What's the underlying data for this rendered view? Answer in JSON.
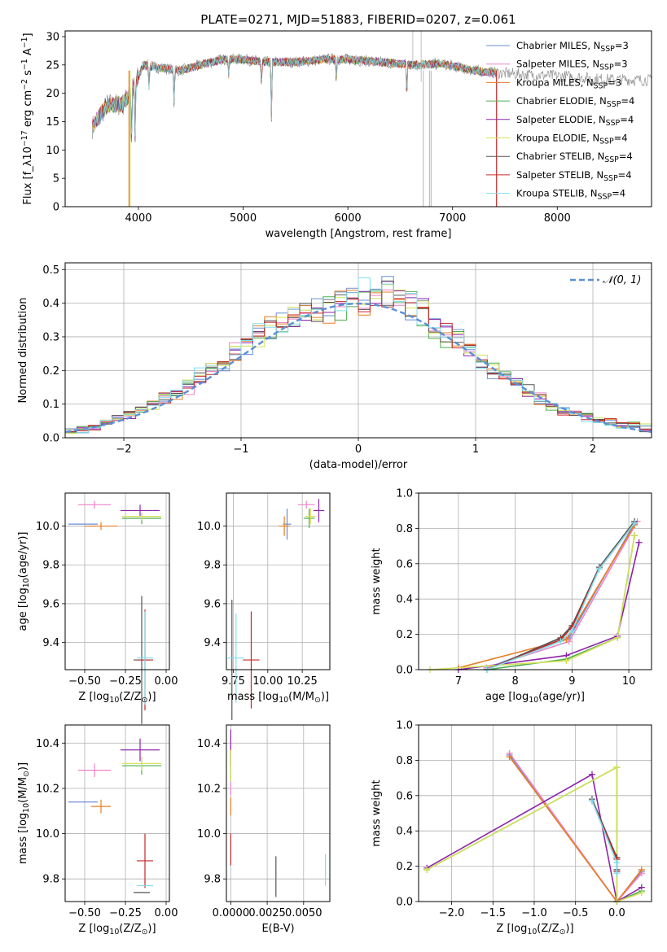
{
  "figure": {
    "title": "PLATE=0271, MJD=51883, FIBERID=0207, z=0.061"
  },
  "colors": {
    "Chabrier MILES": "#6a8fd6",
    "Salpeter MILES": "#ee82c8",
    "Kroupa MILES": "#e67e22",
    "Chabrier ELODIE": "#4caf50",
    "Salpeter ELODIE": "#8e24aa",
    "Kroupa ELODIE": "#d4e157",
    "Chabrier STELIB": "#555555",
    "Salpeter STELIB": "#c62828",
    "Kroupa STELIB": "#80deea"
  },
  "chart_data": [
    {
      "id": "spectrum",
      "type": "line",
      "title": "PLATE=0271, MJD=51883, FIBERID=0207, z=0.061",
      "xlabel": "wavelength [Angstrom, rest frame]",
      "ylabel": "Flux [f_λ10^-17 erg cm^-2 s^-1 A^-1]",
      "xlim": [
        3300,
        8900
      ],
      "ylim": [
        0,
        31
      ],
      "xticks": [
        4000,
        5000,
        6000,
        7000,
        8000
      ],
      "yticks": [
        0,
        5,
        10,
        15,
        20,
        25,
        30
      ],
      "legend_position": "top-right",
      "legend": [
        "Chabrier MILES, N_SSP=3",
        "Salpeter MILES, N_SSP=3",
        "Kroupa MILES, N_SSP=3",
        "Chabrier ELODIE, N_SSP=4",
        "Salpeter ELODIE, N_SSP=4",
        "Kroupa ELODIE, N_SSP=4",
        "Chabrier STELIB, N_SSP=4",
        "Salpeter STELIB, N_SSP=4",
        "Kroupa STELIB, N_SSP=4"
      ],
      "continuum": [
        [
          3560,
          14
        ],
        [
          3700,
          18
        ],
        [
          3850,
          18
        ],
        [
          3950,
          21
        ],
        [
          4050,
          25
        ],
        [
          4200,
          24.5
        ],
        [
          4400,
          24
        ],
        [
          4600,
          25
        ],
        [
          4800,
          26
        ],
        [
          5000,
          26
        ],
        [
          5200,
          25.5
        ],
        [
          5500,
          25.5
        ],
        [
          5800,
          26
        ],
        [
          6000,
          26
        ],
        [
          6300,
          25.5
        ],
        [
          6600,
          25
        ],
        [
          6900,
          25.2
        ],
        [
          7200,
          24
        ],
        [
          7500,
          23.5
        ],
        [
          7800,
          23.2
        ],
        [
          8100,
          23
        ],
        [
          8400,
          22.5
        ],
        [
          8900,
          22.3
        ]
      ],
      "grid": false
    },
    {
      "id": "residuals",
      "type": "step",
      "xlabel": "(data-model)/error",
      "ylabel": "Normed distribution",
      "xlim": [
        -2.5,
        2.5
      ],
      "ylim": [
        0,
        0.52
      ],
      "xticks": [
        -2,
        -1,
        0,
        1,
        2
      ],
      "yticks": [
        0.0,
        0.1,
        0.2,
        0.3,
        0.4,
        0.5
      ],
      "legend_position": "top-right",
      "legend": [
        "N(0,1)"
      ],
      "base_hist": [
        0.02,
        0.025,
        0.03,
        0.045,
        0.06,
        0.07,
        0.085,
        0.1,
        0.12,
        0.13,
        0.155,
        0.18,
        0.2,
        0.23,
        0.255,
        0.28,
        0.3,
        0.32,
        0.34,
        0.36,
        0.37,
        0.38,
        0.385,
        0.39,
        0.395,
        0.42,
        0.44,
        0.43,
        0.41,
        0.39,
        0.37,
        0.34,
        0.31,
        0.285,
        0.26,
        0.23,
        0.205,
        0.18,
        0.16,
        0.14,
        0.115,
        0.095,
        0.08,
        0.07,
        0.06,
        0.05,
        0.045,
        0.04,
        0.035,
        0.03
      ],
      "grid": true
    },
    {
      "id": "age-vs-Z",
      "type": "errorbar",
      "xlabel": "Z [log10(Z/Z⊙)]",
      "ylabel": "age [log10(age/yr)]",
      "xlim": [
        -0.62,
        0.02
      ],
      "ylim": [
        9.26,
        10.17
      ],
      "xticks": [
        -0.5,
        -0.25,
        0.0
      ],
      "yticks": [
        9.4,
        9.6,
        9.8,
        10.0
      ],
      "points": [
        {
          "model": "Chabrier MILES",
          "x": -0.51,
          "y": 10.01,
          "xerr": 0.09,
          "yerr": 0.0
        },
        {
          "model": "Salpeter MILES",
          "x": -0.44,
          "y": 10.11,
          "xerr": 0.1,
          "yerr": 0.02
        },
        {
          "model": "Kroupa MILES",
          "x": -0.4,
          "y": 10.0,
          "xerr": 0.1,
          "yerr": 0.02
        },
        {
          "model": "Chabrier ELODIE",
          "x": -0.15,
          "y": 10.04,
          "xerr": 0.12,
          "yerr": 0.03
        },
        {
          "model": "Salpeter ELODIE",
          "x": -0.16,
          "y": 10.08,
          "xerr": 0.12,
          "yerr": 0.03
        },
        {
          "model": "Kroupa ELODIE",
          "x": -0.15,
          "y": 10.05,
          "xerr": 0.12,
          "yerr": 0.02
        },
        {
          "model": "Chabrier STELIB",
          "x": -0.15,
          "y": 9.31,
          "xerr": 0.05,
          "yerr": 0.33
        },
        {
          "model": "Salpeter STELIB",
          "x": -0.13,
          "y": 9.31,
          "xerr": 0.05,
          "yerr": 0.26
        },
        {
          "model": "Kroupa STELIB",
          "x": -0.13,
          "y": 9.32,
          "xerr": 0.05,
          "yerr": 0.24
        }
      ],
      "grid": true
    },
    {
      "id": "age-vs-mass",
      "type": "errorbar",
      "xlabel": "mass [log10(M/M⊙)]",
      "ylabel": "",
      "xlim": [
        9.7,
        10.45
      ],
      "ylim": [
        9.26,
        10.17
      ],
      "xticks": [
        9.75,
        10.0,
        10.25
      ],
      "yticks": [
        9.4,
        9.6,
        9.8,
        10.0
      ],
      "points": [
        {
          "model": "Chabrier MILES",
          "x": 10.14,
          "y": 10.01,
          "xerr": 0.03,
          "yerr": 0.08
        },
        {
          "model": "Salpeter MILES",
          "x": 10.28,
          "y": 10.11,
          "xerr": 0.06,
          "yerr": 0.02
        },
        {
          "model": "Kroupa MILES",
          "x": 10.12,
          "y": 10.0,
          "xerr": 0.04,
          "yerr": 0.05
        },
        {
          "model": "Chabrier ELODIE",
          "x": 10.3,
          "y": 10.04,
          "xerr": 0.04,
          "yerr": 0.05
        },
        {
          "model": "Salpeter ELODIE",
          "x": 10.37,
          "y": 10.08,
          "xerr": 0.04,
          "yerr": 0.06
        },
        {
          "model": "Kroupa ELODIE",
          "x": 10.31,
          "y": 10.05,
          "xerr": 0.04,
          "yerr": 0.04
        },
        {
          "model": "Chabrier STELIB",
          "x": 9.74,
          "y": 9.31,
          "xerr": 0.0,
          "yerr": 0.31
        },
        {
          "model": "Salpeter STELIB",
          "x": 9.88,
          "y": 9.31,
          "xerr": 0.06,
          "yerr": 0.25
        },
        {
          "model": "Kroupa STELIB",
          "x": 9.77,
          "y": 9.32,
          "xerr": 0.06,
          "yerr": 0.23
        }
      ],
      "grid": true
    },
    {
      "id": "massweight-vs-age",
      "type": "line",
      "xlabel": "age [log10(age/yr)]",
      "ylabel": "mass weight",
      "xlim": [
        6.3,
        10.4
      ],
      "ylim": [
        0,
        1.0
      ],
      "xticks": [
        7,
        8,
        9,
        10
      ],
      "yticks": [
        0.0,
        0.2,
        0.4,
        0.6,
        0.8,
        1.0
      ],
      "series": [
        {
          "name": "Chabrier MILES",
          "x": [
            7.5,
            8.95,
            10.1
          ],
          "y": [
            0.01,
            0.18,
            0.83
          ]
        },
        {
          "name": "Salpeter MILES",
          "x": [
            7.5,
            8.95,
            10.15
          ],
          "y": [
            0.01,
            0.16,
            0.84
          ]
        },
        {
          "name": "Kroupa MILES",
          "x": [
            7.0,
            8.9,
            10.1
          ],
          "y": [
            0.01,
            0.17,
            0.82
          ]
        },
        {
          "name": "Chabrier ELODIE",
          "x": [
            7.5,
            8.9,
            9.8,
            10.1
          ],
          "y": [
            0.0,
            0.06,
            0.18,
            0.76
          ]
        },
        {
          "name": "Salpeter ELODIE",
          "x": [
            7.0,
            8.9,
            9.8,
            10.18
          ],
          "y": [
            0.0,
            0.08,
            0.19,
            0.72
          ]
        },
        {
          "name": "Kroupa ELODIE",
          "x": [
            6.5,
            8.9,
            9.8,
            10.1
          ],
          "y": [
            0.0,
            0.05,
            0.18,
            0.76
          ]
        },
        {
          "name": "Chabrier STELIB",
          "x": [
            7.5,
            8.8,
            9.0,
            9.48,
            10.1
          ],
          "y": [
            0.0,
            0.18,
            0.25,
            0.58,
            0.84
          ]
        },
        {
          "name": "Salpeter STELIB",
          "x": [
            7.5,
            8.8,
            9.0,
            9.48,
            10.1
          ],
          "y": [
            0.0,
            0.17,
            0.24,
            0.57,
            0.83
          ]
        },
        {
          "name": "Kroupa STELIB",
          "x": [
            7.5,
            8.8,
            9.0,
            9.48,
            10.1
          ],
          "y": [
            0.0,
            0.16,
            0.22,
            0.57,
            0.83
          ]
        }
      ],
      "grid": true
    },
    {
      "id": "mass-vs-Z",
      "type": "errorbar",
      "xlabel": "Z [log10(Z/Z⊙)]",
      "ylabel": "mass [log10(M/M⊙)]",
      "xlim": [
        -0.62,
        0.02
      ],
      "ylim": [
        9.7,
        10.48
      ],
      "xticks": [
        -0.5,
        -0.25,
        0.0
      ],
      "yticks": [
        9.8,
        10.0,
        10.2,
        10.4
      ],
      "points": [
        {
          "model": "Chabrier MILES",
          "x": -0.51,
          "y": 10.14,
          "xerr": 0.09,
          "yerr": 0.0
        },
        {
          "model": "Salpeter MILES",
          "x": -0.44,
          "y": 10.28,
          "xerr": 0.1,
          "yerr": 0.03
        },
        {
          "model": "Kroupa MILES",
          "x": -0.4,
          "y": 10.12,
          "xerr": 0.06,
          "yerr": 0.03
        },
        {
          "model": "Chabrier ELODIE",
          "x": -0.15,
          "y": 10.3,
          "xerr": 0.12,
          "yerr": 0.04
        },
        {
          "model": "Salpeter ELODIE",
          "x": -0.16,
          "y": 10.37,
          "xerr": 0.12,
          "yerr": 0.05
        },
        {
          "model": "Kroupa ELODIE",
          "x": -0.15,
          "y": 10.31,
          "xerr": 0.12,
          "yerr": 0.03
        },
        {
          "model": "Chabrier STELIB",
          "x": -0.15,
          "y": 9.74,
          "xerr": 0.05,
          "yerr": 0.0
        },
        {
          "model": "Salpeter STELIB",
          "x": -0.13,
          "y": 9.88,
          "xerr": 0.05,
          "yerr": 0.12
        },
        {
          "model": "Kroupa STELIB",
          "x": -0.13,
          "y": 9.77,
          "xerr": 0.05,
          "yerr": 0.0
        }
      ],
      "grid": true
    },
    {
      "id": "mass-vs-EBV",
      "type": "errorbar",
      "xlabel": "E(B-V)",
      "ylabel": "",
      "xlim": [
        -0.0003,
        0.0068
      ],
      "ylim": [
        9.7,
        10.48
      ],
      "xticks": [
        0.0,
        0.0025,
        0.005
      ],
      "xticklabels": [
        "0.0000",
        "0.0025",
        "0.0050"
      ],
      "yticks": [
        9.8,
        10.0,
        10.2,
        10.4
      ],
      "points": [
        {
          "model": "Chabrier MILES",
          "x": 0.0,
          "y": 10.14,
          "xerr": 0,
          "yerr": 0.0
        },
        {
          "model": "Salpeter MILES",
          "x": 0.0,
          "y": 10.3,
          "xerr": 0,
          "yerr": 0.13
        },
        {
          "model": "Kroupa MILES",
          "x": 0.0,
          "y": 10.12,
          "xerr": 0,
          "yerr": 0.04
        },
        {
          "model": "Chabrier ELODIE",
          "x": 0.0,
          "y": 10.3,
          "xerr": 0,
          "yerr": 0.07
        },
        {
          "model": "Salpeter ELODIE",
          "x": 0.0,
          "y": 10.38,
          "xerr": 0,
          "yerr": 0.08
        },
        {
          "model": "Kroupa ELODIE",
          "x": 0.0,
          "y": 10.3,
          "xerr": 0,
          "yerr": 0.07
        },
        {
          "model": "Chabrier STELIB",
          "x": 0.0031,
          "y": 9.81,
          "xerr": 0,
          "yerr": 0.09
        },
        {
          "model": "Salpeter STELIB",
          "x": 0.0,
          "y": 9.93,
          "xerr": 0,
          "yerr": 0.07
        },
        {
          "model": "Kroupa STELIB",
          "x": 0.0065,
          "y": 9.84,
          "xerr": 0,
          "yerr": 0.07
        }
      ],
      "grid": true
    },
    {
      "id": "massweight-vs-Z",
      "type": "line",
      "xlabel": "Z [log10(Z/Z⊙)]",
      "ylabel": "mass weight",
      "xlim": [
        -2.4,
        0.42
      ],
      "ylim": [
        0,
        1.0
      ],
      "xticks": [
        -2.0,
        -1.5,
        -1.0,
        -0.5,
        0.0
      ],
      "yticks": [
        0.0,
        0.2,
        0.4,
        0.6,
        0.8,
        1.0
      ],
      "series": [
        {
          "name": "Chabrier MILES",
          "x": [
            -1.3,
            0.0,
            0.3
          ],
          "y": [
            0.83,
            0.0,
            0.17
          ]
        },
        {
          "name": "Salpeter MILES",
          "x": [
            -1.3,
            0.0,
            0.3
          ],
          "y": [
            0.84,
            0.0,
            0.16
          ]
        },
        {
          "name": "Kroupa MILES",
          "x": [
            -1.3,
            0.0,
            0.3
          ],
          "y": [
            0.82,
            0.0,
            0.18
          ]
        },
        {
          "name": "Chabrier ELODIE",
          "x": [
            -2.3,
            0.0,
            0.0,
            0.3
          ],
          "y": [
            0.18,
            0.76,
            0.0,
            0.06
          ]
        },
        {
          "name": "Salpeter ELODIE",
          "x": [
            -2.3,
            -0.3,
            0.0,
            0.3
          ],
          "y": [
            0.19,
            0.72,
            0.0,
            0.08
          ]
        },
        {
          "name": "Kroupa ELODIE",
          "x": [
            -2.3,
            0.0,
            0.0,
            0.3
          ],
          "y": [
            0.18,
            0.76,
            0.0,
            0.05
          ]
        },
        {
          "name": "Chabrier STELIB",
          "x": [
            -0.3,
            0.0,
            0.0
          ],
          "y": [
            0.58,
            0.25,
            0.18
          ]
        },
        {
          "name": "Salpeter STELIB",
          "x": [
            -0.3,
            0.0,
            0.0
          ],
          "y": [
            0.57,
            0.24,
            0.17
          ]
        },
        {
          "name": "Kroupa STELIB",
          "x": [
            -0.3,
            0.0,
            0.0
          ],
          "y": [
            0.57,
            0.22,
            0.16
          ]
        }
      ],
      "grid": true
    }
  ]
}
